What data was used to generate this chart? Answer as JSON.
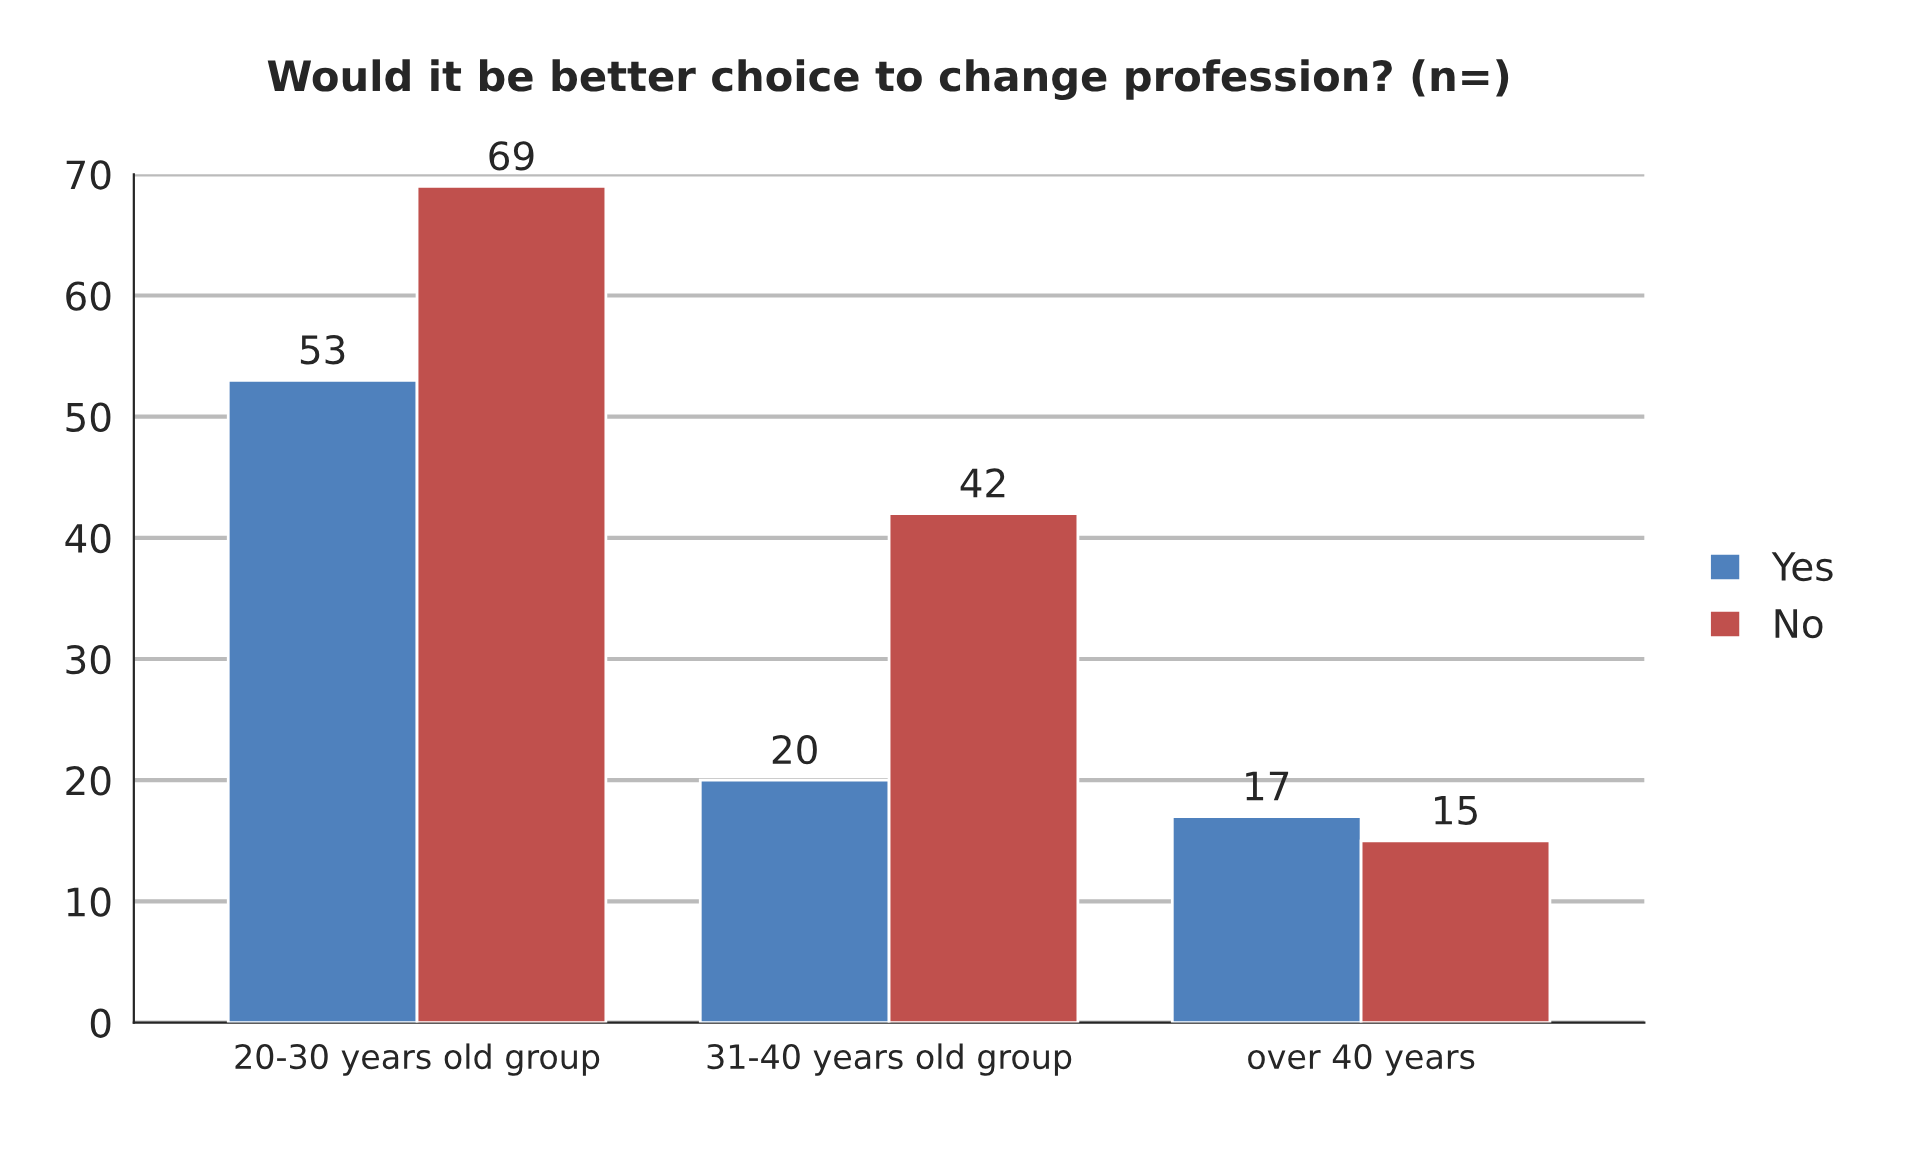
{
  "chart_data": {
    "type": "bar",
    "title": "Would it be better choice to change profession? (n=)",
    "categories": [
      "20-30 years old group",
      "31-40 years old group",
      "over 40 years"
    ],
    "series": [
      {
        "name": "Yes",
        "color": "#4f81bd",
        "values": [
          53,
          20,
          17
        ]
      },
      {
        "name": "No",
        "color": "#c0504d",
        "values": [
          69,
          42,
          15
        ]
      }
    ],
    "ylim": [
      0,
      70
    ],
    "yticks": [
      0,
      10,
      20,
      30,
      40,
      50,
      60,
      70
    ],
    "grid": "y",
    "legend": "right",
    "data_labels": true
  }
}
